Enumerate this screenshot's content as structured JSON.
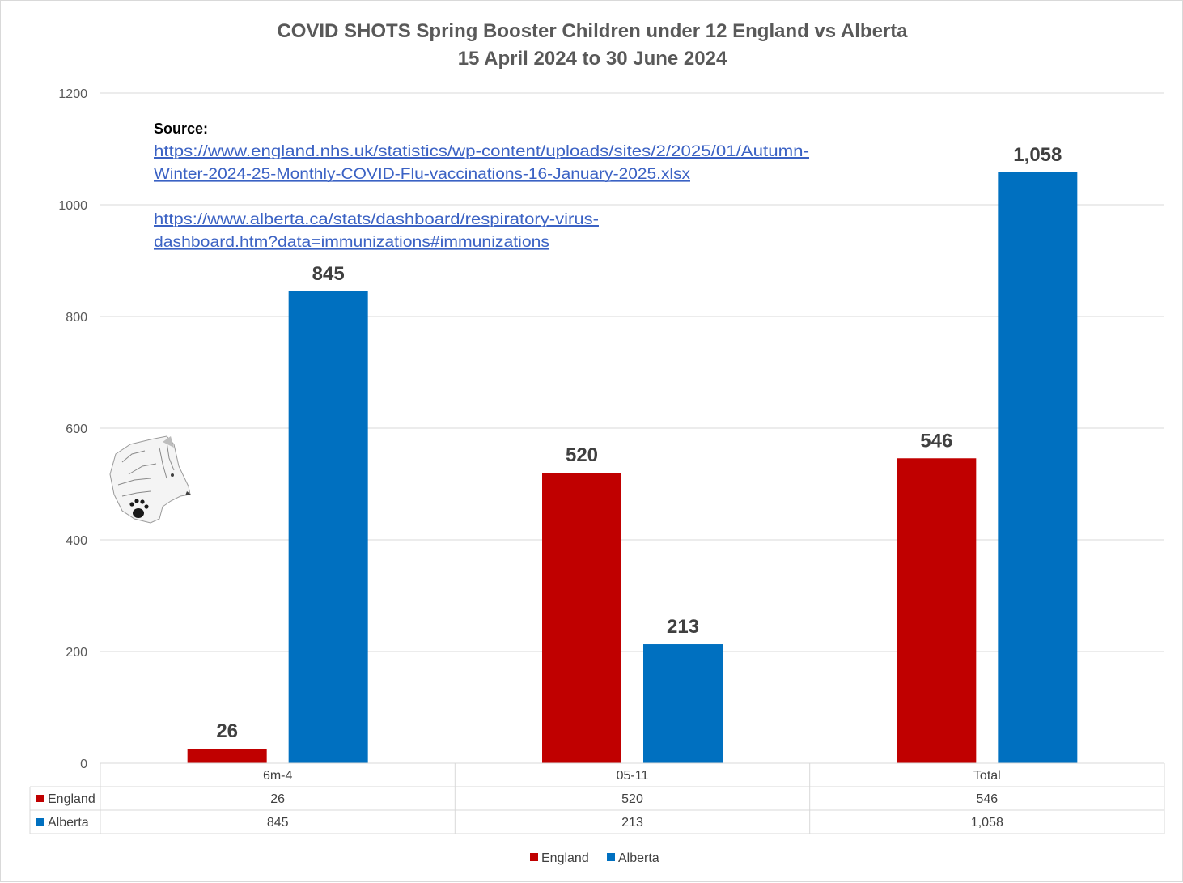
{
  "chart_data": {
    "type": "bar",
    "title_lines": [
      "COVID SHOTS Spring Booster Children under 12 England vs Alberta",
      "15 April 2024 to 30 June 2024"
    ],
    "categories": [
      "6m-4",
      "05-11",
      "Total"
    ],
    "series": [
      {
        "name": "England",
        "values": [
          26,
          520,
          546
        ],
        "labels": [
          "26",
          "520",
          "546"
        ],
        "color": "#c00000"
      },
      {
        "name": "Alberta",
        "values": [
          845,
          213,
          1058
        ],
        "labels": [
          "845",
          "213",
          "1,058"
        ],
        "color": "#0070c0"
      }
    ],
    "ylim": [
      0,
      1200
    ],
    "yticks": [
      "0",
      "200",
      "400",
      "600",
      "800",
      "1000",
      "1200"
    ],
    "grid": true,
    "legend_position": "bottom",
    "data_table": true,
    "annotation": {
      "label": "Source:",
      "link1_lines": [
        "https://www.england.nhs.uk/statistics/wp-content/uploads/sites/2/2025/01/Autumn-",
        "Winter-2024-25-Monthly-COVID-Flu-vaccinations-16-January-2025.xlsx"
      ],
      "link2_lines": [
        "https://www.alberta.ca/stats/dashboard/respiratory-virus-",
        "dashboard.htm?data=immunizations#immunizations"
      ]
    },
    "logo": "wolf-head-with-paw-print"
  }
}
